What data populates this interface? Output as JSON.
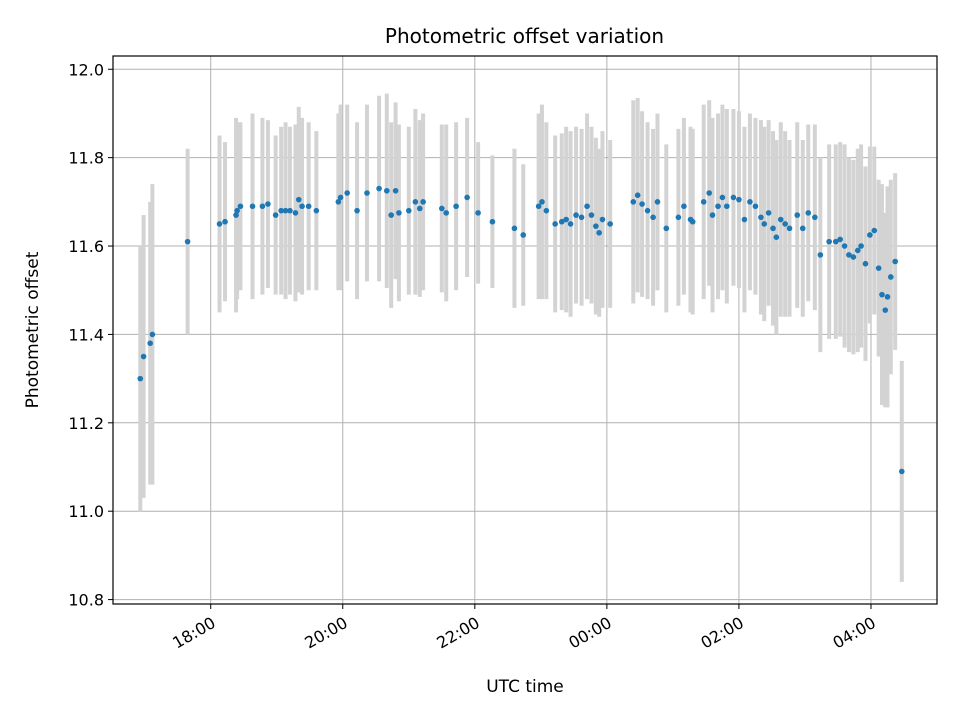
{
  "chart_data": {
    "type": "scatter",
    "title": "Photometric offset variation",
    "xlabel": "UTC time",
    "ylabel": "Photometric offset",
    "x_unit": "hours",
    "xlim": [
      16.52,
      5.0
    ],
    "xlim_note": "hours of day; the axis runs from about 16:31 to about 05:00 the next morning",
    "ylim": [
      10.79,
      12.03
    ],
    "x_ticks": [
      "18:00",
      "20:00",
      "22:00",
      "00:00",
      "02:00",
      "04:00"
    ],
    "y_ticks": [
      "10.8",
      "11.0",
      "11.2",
      "11.4",
      "11.6",
      "11.8",
      "12.0"
    ],
    "grid": true,
    "colors": {
      "point": "#1f77b4",
      "errorbar": "#d3d3d3",
      "grid": "#b0b0b0"
    },
    "points": [
      [
        "16:56",
        11.3,
        0.3
      ],
      [
        "16:59",
        11.35,
        0.32
      ],
      [
        "17:05",
        11.38,
        0.32
      ],
      [
        "17:07",
        11.4,
        0.34
      ],
      [
        "17:39",
        11.61,
        0.21
      ],
      [
        "18:08",
        11.65,
        0.2
      ],
      [
        "18:13",
        11.655,
        0.18
      ],
      [
        "18:23",
        11.67,
        0.22
      ],
      [
        "18:24",
        11.68,
        0.2
      ],
      [
        "18:27",
        11.69,
        0.19
      ],
      [
        "18:38",
        11.69,
        0.21
      ],
      [
        "18:47",
        11.69,
        0.2
      ],
      [
        "18:52",
        11.695,
        0.19
      ],
      [
        "18:59",
        11.67,
        0.18
      ],
      [
        "19:04",
        11.68,
        0.19
      ],
      [
        "19:08",
        11.68,
        0.2
      ],
      [
        "19:12",
        11.68,
        0.19
      ],
      [
        "19:17",
        11.675,
        0.2
      ],
      [
        "19:20",
        11.705,
        0.21
      ],
      [
        "19:23",
        11.69,
        0.2
      ],
      [
        "19:29",
        11.69,
        0.19
      ],
      [
        "19:36",
        11.68,
        0.18
      ],
      [
        "19:56",
        11.7,
        0.2
      ],
      [
        "19:58",
        11.71,
        0.21
      ],
      [
        "20:04",
        11.72,
        0.2
      ],
      [
        "20:13",
        11.68,
        0.2
      ],
      [
        "20:22",
        11.72,
        0.2
      ],
      [
        "20:33",
        11.73,
        0.21
      ],
      [
        "20:40",
        11.725,
        0.22
      ],
      [
        "20:44",
        11.67,
        0.21
      ],
      [
        "20:48",
        11.725,
        0.2
      ],
      [
        "20:51",
        11.675,
        0.2
      ],
      [
        "21:00",
        11.68,
        0.19
      ],
      [
        "21:06",
        11.7,
        0.21
      ],
      [
        "21:10",
        11.685,
        0.2
      ],
      [
        "21:13",
        11.7,
        0.2
      ],
      [
        "21:30",
        11.685,
        0.19
      ],
      [
        "21:34",
        11.675,
        0.2
      ],
      [
        "21:43",
        11.69,
        0.19
      ],
      [
        "21:53",
        11.71,
        0.18
      ],
      [
        "22:03",
        11.675,
        0.16
      ],
      [
        "22:16",
        11.655,
        0.15
      ],
      [
        "22:36",
        11.64,
        0.18
      ],
      [
        "22:44",
        11.625,
        0.16
      ],
      [
        "22:58",
        11.69,
        0.21
      ],
      [
        "23:01",
        11.7,
        0.22
      ],
      [
        "23:05",
        11.68,
        0.2
      ],
      [
        "23:13",
        11.65,
        0.2
      ],
      [
        "23:19",
        11.655,
        0.2
      ],
      [
        "23:23",
        11.66,
        0.21
      ],
      [
        "23:27",
        11.65,
        0.21
      ],
      [
        "23:32",
        11.67,
        0.2
      ],
      [
        "23:37",
        11.665,
        0.2
      ],
      [
        "23:42",
        11.69,
        0.21
      ],
      [
        "23:46",
        11.67,
        0.2
      ],
      [
        "23:50",
        11.645,
        0.2
      ],
      [
        "23:53",
        11.63,
        0.19
      ],
      [
        "23:56",
        11.66,
        0.2
      ],
      [
        "00:03",
        11.65,
        0.19
      ],
      [
        "00:24",
        11.7,
        0.23
      ],
      [
        "00:28",
        11.715,
        0.22
      ],
      [
        "00:32",
        11.695,
        0.21
      ],
      [
        "00:37",
        11.68,
        0.2
      ],
      [
        "00:42",
        11.665,
        0.2
      ],
      [
        "00:46",
        11.7,
        0.2
      ],
      [
        "00:54",
        11.64,
        0.19
      ],
      [
        "01:05",
        11.665,
        0.2
      ],
      [
        "01:10",
        11.69,
        0.2
      ],
      [
        "01:16",
        11.66,
        0.21
      ],
      [
        "01:18",
        11.655,
        0.21
      ],
      [
        "01:28",
        11.7,
        0.22
      ],
      [
        "01:33",
        11.72,
        0.21
      ],
      [
        "01:36",
        11.67,
        0.22
      ],
      [
        "01:41",
        11.69,
        0.21
      ],
      [
        "01:45",
        11.71,
        0.21
      ],
      [
        "01:49",
        11.69,
        0.22
      ],
      [
        "01:55",
        11.71,
        0.2
      ],
      [
        "02:00",
        11.705,
        0.2
      ],
      [
        "02:05",
        11.66,
        0.21
      ],
      [
        "02:10",
        11.7,
        0.2
      ],
      [
        "02:15",
        11.69,
        0.2
      ],
      [
        "02:20",
        11.665,
        0.22
      ],
      [
        "02:23",
        11.65,
        0.22
      ],
      [
        "02:27",
        11.675,
        0.21
      ],
      [
        "02:31",
        11.64,
        0.22
      ],
      [
        "02:34",
        11.62,
        0.22
      ],
      [
        "02:38",
        11.66,
        0.22
      ],
      [
        "02:42",
        11.65,
        0.21
      ],
      [
        "02:46",
        11.64,
        0.2
      ],
      [
        "02:53",
        11.67,
        0.21
      ],
      [
        "02:58",
        11.64,
        0.2
      ],
      [
        "03:03",
        11.675,
        0.2
      ],
      [
        "03:09",
        11.665,
        0.21
      ],
      [
        "03:14",
        11.58,
        0.22
      ],
      [
        "03:22",
        11.61,
        0.22
      ],
      [
        "03:28",
        11.61,
        0.22
      ],
      [
        "03:32",
        11.615,
        0.22
      ],
      [
        "03:36",
        11.6,
        0.23
      ],
      [
        "03:40",
        11.58,
        0.22
      ],
      [
        "03:44",
        11.575,
        0.22
      ],
      [
        "03:48",
        11.59,
        0.23
      ],
      [
        "03:51",
        11.6,
        0.23
      ],
      [
        "03:55",
        11.56,
        0.22
      ],
      [
        "03:59",
        11.625,
        0.2
      ],
      [
        "04:03",
        11.635,
        0.19
      ],
      [
        "04:07",
        11.55,
        0.2
      ],
      [
        "04:10",
        11.49,
        0.25
      ],
      [
        "04:13",
        11.455,
        0.22
      ],
      [
        "04:15",
        11.485,
        0.25
      ],
      [
        "04:18",
        11.53,
        0.22
      ],
      [
        "04:22",
        11.565,
        0.2
      ],
      [
        "04:28",
        11.09,
        0.25
      ]
    ]
  }
}
